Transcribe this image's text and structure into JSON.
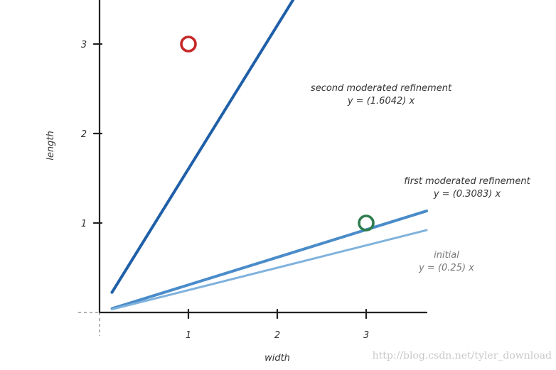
{
  "chart_data": {
    "type": "line",
    "xlabel": "width",
    "ylabel": "length",
    "xlim": [
      -0.2,
      3.6
    ],
    "ylim": [
      -0.2,
      3.5
    ],
    "x_ticks": [
      "1",
      "2",
      "3"
    ],
    "y_ticks": [
      "1",
      "2",
      "3"
    ],
    "series": [
      {
        "name": "second moderated refinement",
        "equation": "y = (1.6042) x",
        "slope": 1.6042,
        "x": [
          0.14,
          2.5
        ],
        "color": "#1f5fa8",
        "width": 4
      },
      {
        "name": "first moderated refinement",
        "equation": "y = (0.3083) x",
        "slope": 0.3083,
        "x": [
          0.14,
          3.68
        ],
        "color": "#4a8cc9",
        "width": 4
      },
      {
        "name": "initial",
        "equation": "y = (0.25) x",
        "slope": 0.25,
        "x": [
          0.14,
          3.68
        ],
        "color": "#7fb2dd",
        "width": 3
      }
    ],
    "points": [
      {
        "x": 1.0,
        "y": 3.0,
        "color": "#c62828"
      },
      {
        "x": 3.0,
        "y": 1.0,
        "color": "#2e7d4f"
      }
    ],
    "grid": false,
    "legend": "none"
  },
  "watermark": "http://blog.csdn.net/tyler_download"
}
